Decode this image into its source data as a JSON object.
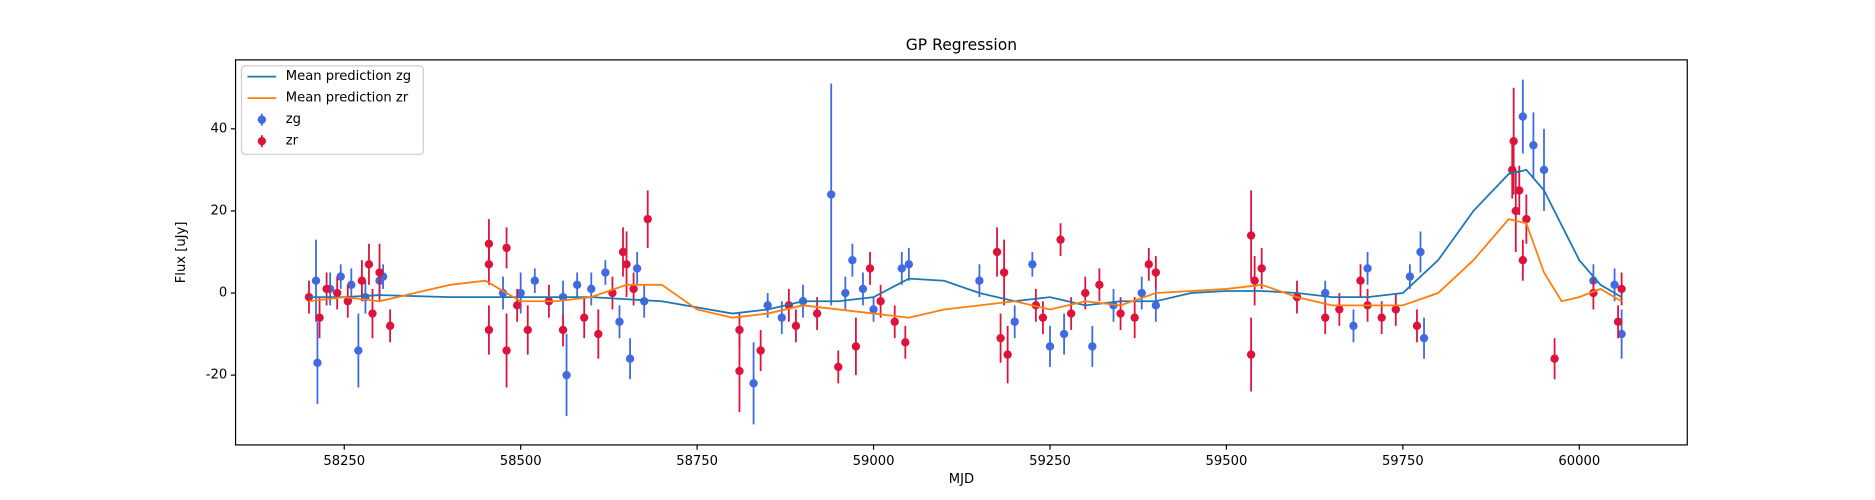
{
  "chart_data": {
    "type": "errorbar",
    "title": "GP Regression",
    "x_label": "MJD",
    "y_label": "Flux [uJy]",
    "xlim": [
      58096,
      60153
    ],
    "ylim": [
      -37,
      56.8
    ],
    "xticks": [
      58250,
      58500,
      58750,
      59000,
      59250,
      59500,
      59750,
      60000
    ],
    "yticks": [
      -20,
      0,
      20,
      40
    ],
    "legend": "upper left",
    "series": [
      {
        "name": "Mean prediction zg",
        "color": "#1f77b4",
        "x": [
          58200,
          58250,
          58300,
          58400,
          58500,
          58600,
          58700,
          58800,
          58850,
          58900,
          58950,
          59000,
          59050,
          59100,
          59150,
          59200,
          59250,
          59300,
          59350,
          59400,
          59450,
          59500,
          59550,
          59600,
          59650,
          59700,
          59750,
          59800,
          59850,
          59900,
          59925,
          59950,
          60000,
          60030,
          60060
        ],
        "values": [
          -1,
          -1,
          -0.5,
          -1,
          -1,
          -1,
          -2,
          -5,
          -4,
          -2,
          -2,
          -1,
          3.5,
          3,
          0,
          -2,
          -1,
          -3,
          -2,
          -2,
          0,
          0.5,
          0.5,
          0,
          -1,
          -1,
          0,
          8,
          20,
          29,
          30,
          25,
          8,
          2,
          -1
        ]
      },
      {
        "name": "Mean prediction zr",
        "color": "#ff7f0e",
        "x": [
          58200,
          58250,
          58300,
          58350,
          58400,
          58450,
          58500,
          58550,
          58600,
          58650,
          58700,
          58750,
          58800,
          58850,
          58900,
          58950,
          59000,
          59050,
          59100,
          59150,
          59200,
          59250,
          59300,
          59350,
          59400,
          59450,
          59500,
          59550,
          59600,
          59650,
          59700,
          59750,
          59800,
          59850,
          59900,
          59925,
          59950,
          59975,
          60000,
          60030,
          60060
        ],
        "values": [
          -2,
          -1,
          -2,
          0,
          2,
          3,
          -2,
          -2,
          -1,
          2,
          2,
          -4,
          -6,
          -5,
          -3,
          -4,
          -5,
          -6,
          -4,
          -3,
          -2,
          -4,
          -2,
          -3,
          0,
          0.5,
          1,
          2,
          -1,
          -3,
          -3,
          -3,
          0,
          8,
          18,
          17,
          5,
          -2,
          -1,
          1,
          -2
        ]
      },
      {
        "name": "zg",
        "color": "#4169e1",
        "x": [
          58210,
          58212,
          58230,
          58245,
          58260,
          58270,
          58280,
          58300,
          58305,
          58475,
          58500,
          58520,
          58560,
          58565,
          58580,
          58600,
          58620,
          58640,
          58655,
          58665,
          58675,
          58830,
          58850,
          58870,
          58900,
          58940,
          58960,
          58970,
          58985,
          59000,
          59040,
          59050,
          59150,
          59200,
          59225,
          59250,
          59270,
          59310,
          59340,
          59380,
          59400,
          59640,
          59680,
          59700,
          59760,
          59775,
          59780,
          59920,
          59935,
          59950,
          60020,
          60050,
          60060
        ],
        "values": [
          3,
          -17,
          1,
          4,
          2,
          -14,
          -1,
          3,
          4,
          0,
          0,
          3,
          -1,
          -20,
          2,
          1,
          5,
          -7,
          -16,
          6,
          -2,
          -22,
          -3,
          -6,
          -2,
          24,
          0,
          8,
          1,
          -4,
          6,
          7,
          3,
          -7,
          7,
          -13,
          -10,
          -13,
          -3,
          0,
          -3,
          0,
          -8,
          6,
          4,
          10,
          -11,
          43,
          36,
          30,
          3,
          2,
          -10
        ],
        "errors": [
          10,
          10,
          4,
          3,
          4,
          9,
          4,
          4,
          3,
          4,
          5,
          3,
          4,
          10,
          3,
          4,
          3,
          4,
          5,
          4,
          4,
          10,
          3,
          4,
          4,
          27,
          4,
          4,
          4,
          3,
          4,
          4,
          4,
          4,
          3,
          5,
          5,
          5,
          4,
          4,
          4,
          3,
          4,
          4,
          3,
          5,
          5,
          9,
          8,
          10,
          4,
          4,
          6
        ]
      },
      {
        "name": "zr",
        "color": "#dc143c",
        "x": [
          58200,
          58215,
          58225,
          58240,
          58255,
          58275,
          58285,
          58290,
          58300,
          58315,
          58455,
          58455,
          58455,
          58480,
          58480,
          58495,
          58510,
          58540,
          58560,
          58590,
          58610,
          58630,
          58645,
          58650,
          58660,
          58680,
          58810,
          58810,
          58840,
          58880,
          58890,
          58920,
          58950,
          58975,
          58995,
          59010,
          59030,
          59045,
          59175,
          59180,
          59185,
          59190,
          59230,
          59240,
          59265,
          59280,
          59300,
          59320,
          59350,
          59370,
          59390,
          59400,
          59535,
          59535,
          59540,
          59550,
          59600,
          59640,
          59660,
          59690,
          59700,
          59720,
          59740,
          59770,
          59905,
          59907,
          59910,
          59915,
          59920,
          59925,
          59965,
          60020,
          60055,
          60060
        ],
        "values": [
          -1,
          -6,
          1,
          0,
          -2,
          3,
          7,
          -5,
          5,
          -8,
          12,
          7,
          -9,
          11,
          -14,
          -3,
          -9,
          -2,
          -9,
          -6,
          -10,
          0,
          10,
          7,
          1,
          18,
          -19,
          -9,
          -14,
          -3,
          -8,
          -5,
          -18,
          -13,
          6,
          -2,
          -7,
          -12,
          10,
          -11,
          5,
          -15,
          -3,
          -6,
          13,
          -5,
          0,
          2,
          -5,
          -6,
          7,
          5,
          14,
          -15,
          3,
          6,
          -1,
          -6,
          -4,
          3,
          -3,
          -6,
          -4,
          -8,
          30,
          37,
          20,
          25,
          8,
          18,
          -16,
          0,
          -7,
          1
        ],
        "errors": [
          4,
          5,
          4,
          4,
          4,
          5,
          5,
          6,
          7,
          4,
          6,
          5,
          6,
          5,
          9,
          4,
          6,
          4,
          4,
          5,
          6,
          4,
          6,
          8,
          4,
          7,
          10,
          4,
          5,
          4,
          4,
          4,
          4,
          7,
          4,
          4,
          4,
          4,
          6,
          6,
          8,
          7,
          4,
          4,
          4,
          4,
          4,
          4,
          4,
          5,
          4,
          4,
          11,
          9,
          6,
          5,
          4,
          4,
          4,
          4,
          4,
          4,
          4,
          4,
          7,
          13,
          10,
          6,
          5,
          6,
          5,
          4,
          4,
          4
        ]
      }
    ]
  }
}
